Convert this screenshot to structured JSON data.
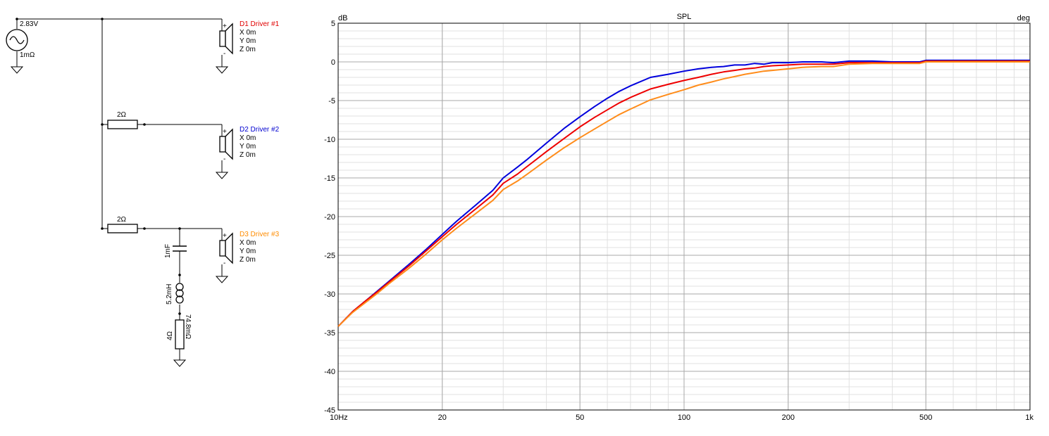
{
  "schematic": {
    "source": {
      "voltage": "2.83V",
      "resistance": "1mΩ"
    },
    "drivers": [
      {
        "name": "D1 Driver #1",
        "color": "#ff0000",
        "x": "X 0m",
        "y": "Y 0m",
        "z": "Z 0m"
      },
      {
        "name": "D2 Driver #2",
        "color": "#0000ff",
        "x": "X 0m",
        "y": "Y 0m",
        "z": "Z 0m"
      },
      {
        "name": "D3 Driver #3",
        "color": "#ff8c00",
        "x": "X 0m",
        "y": "Y 0m",
        "z": "Z 0m"
      }
    ],
    "resistor_d2": "2Ω",
    "resistor_d3": "2Ω",
    "capacitor": "1mF",
    "inductor": "5.2mH",
    "inductor_resistance": "74.8mΩ",
    "shunt_resistor": "4Ω",
    "plus_sign": "+",
    "minus_sign": "-"
  },
  "chart_data": {
    "type": "line",
    "title": "SPL",
    "ylabel": "dB",
    "y2label": "deg",
    "xscale": "log",
    "xlim": [
      10,
      1000
    ],
    "ylim": [
      -45,
      5
    ],
    "grid": true,
    "x_ticks": [
      {
        "value": 10,
        "label": "10Hz"
      },
      {
        "value": 20,
        "label": "20"
      },
      {
        "value": 50,
        "label": "50"
      },
      {
        "value": 100,
        "label": "100"
      },
      {
        "value": 200,
        "label": "200"
      },
      {
        "value": 500,
        "label": "500"
      },
      {
        "value": 1000,
        "label": "1k"
      }
    ],
    "y_ticks": [
      5,
      0,
      -5,
      -10,
      -15,
      -20,
      -25,
      -30,
      -35,
      -40,
      -45
    ],
    "series": [
      {
        "color": "#0000dd",
        "x": [
          10,
          11,
          12,
          13,
          14,
          16,
          18,
          20,
          22,
          25,
          28,
          30,
          33,
          35,
          40,
          45,
          50,
          55,
          60,
          65,
          70,
          80,
          90,
          100,
          110,
          120,
          130,
          140,
          150,
          160,
          170,
          180,
          200,
          220,
          250,
          270,
          300,
          350,
          400,
          450,
          480,
          500,
          600,
          700,
          800,
          900,
          1000
        ],
        "y": [
          -34.2,
          -32.3,
          -30.9,
          -29.6,
          -28.4,
          -26.2,
          -24.2,
          -22.3,
          -20.6,
          -18.5,
          -16.6,
          -15.0,
          -13.6,
          -12.7,
          -10.5,
          -8.6,
          -7.1,
          -5.8,
          -4.7,
          -3.8,
          -3.1,
          -2.0,
          -1.6,
          -1.2,
          -0.9,
          -0.7,
          -0.6,
          -0.4,
          -0.4,
          -0.2,
          -0.3,
          -0.1,
          -0.1,
          0.0,
          0.0,
          -0.1,
          0.1,
          0.1,
          0.0,
          0.0,
          0.0,
          0.2,
          0.2,
          0.2,
          0.2,
          0.2,
          0.2
        ]
      },
      {
        "color": "#ee0000",
        "x": [
          10,
          11,
          12,
          13,
          14,
          16,
          18,
          20,
          22,
          25,
          28,
          30,
          33,
          35,
          40,
          45,
          50,
          55,
          60,
          65,
          70,
          80,
          90,
          100,
          110,
          120,
          130,
          140,
          150,
          160,
          170,
          180,
          200,
          220,
          250,
          270,
          300,
          350,
          400,
          450,
          480,
          500,
          600,
          700,
          800,
          900,
          1000
        ],
        "y": [
          -34.2,
          -32.3,
          -30.9,
          -29.7,
          -28.5,
          -26.4,
          -24.4,
          -22.6,
          -21.0,
          -19.0,
          -17.2,
          -15.7,
          -14.5,
          -13.6,
          -11.6,
          -9.9,
          -8.4,
          -7.2,
          -6.2,
          -5.3,
          -4.6,
          -3.5,
          -2.9,
          -2.4,
          -2.0,
          -1.6,
          -1.3,
          -1.1,
          -0.9,
          -0.8,
          -0.6,
          -0.5,
          -0.4,
          -0.3,
          -0.3,
          -0.3,
          -0.1,
          -0.1,
          -0.1,
          -0.1,
          -0.1,
          0.1,
          0.1,
          0.1,
          0.1,
          0.1,
          0.1
        ]
      },
      {
        "color": "#ff8c1a",
        "x": [
          10,
          11,
          12,
          13,
          14,
          16,
          18,
          20,
          22,
          25,
          28,
          30,
          33,
          35,
          40,
          45,
          50,
          55,
          60,
          65,
          70,
          80,
          90,
          100,
          110,
          120,
          130,
          140,
          150,
          160,
          170,
          180,
          200,
          220,
          250,
          270,
          300,
          350,
          400,
          450,
          480,
          500,
          600,
          700,
          800,
          900,
          1000
        ],
        "y": [
          -34.2,
          -32.4,
          -31.1,
          -29.9,
          -28.7,
          -26.7,
          -24.8,
          -23.0,
          -21.5,
          -19.6,
          -17.9,
          -16.5,
          -15.4,
          -14.6,
          -12.7,
          -11.1,
          -9.8,
          -8.7,
          -7.7,
          -6.8,
          -6.1,
          -4.9,
          -4.2,
          -3.6,
          -3.0,
          -2.6,
          -2.2,
          -1.9,
          -1.6,
          -1.4,
          -1.2,
          -1.1,
          -0.9,
          -0.7,
          -0.6,
          -0.6,
          -0.3,
          -0.2,
          -0.2,
          -0.2,
          -0.2,
          0.0,
          0.0,
          0.0,
          0.0,
          0.0,
          0.0
        ]
      }
    ]
  }
}
